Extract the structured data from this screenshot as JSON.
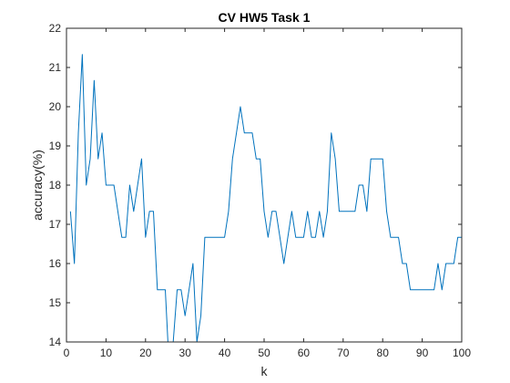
{
  "chart_data": {
    "type": "line",
    "title": "CV HW5 Task 1",
    "xlabel": "k",
    "ylabel": "accuracy(%)",
    "xlim": [
      0,
      100
    ],
    "ylim": [
      14,
      22
    ],
    "xticks": [
      0,
      10,
      20,
      30,
      40,
      50,
      60,
      70,
      80,
      90,
      100
    ],
    "yticks": [
      14,
      15,
      16,
      17,
      18,
      19,
      20,
      21,
      22
    ],
    "grid": false,
    "box": true,
    "series": [
      {
        "color": "#0072BD",
        "x": [
          1,
          2,
          3,
          4,
          5,
          6,
          7,
          8,
          9,
          10,
          11,
          12,
          13,
          14,
          15,
          16,
          17,
          18,
          19,
          20,
          21,
          22,
          23,
          24,
          25,
          26,
          27,
          28,
          29,
          30,
          31,
          32,
          33,
          34,
          35,
          36,
          37,
          38,
          39,
          40,
          41,
          42,
          43,
          44,
          45,
          46,
          47,
          48,
          49,
          50,
          51,
          52,
          53,
          54,
          55,
          56,
          57,
          58,
          59,
          60,
          61,
          62,
          63,
          64,
          65,
          66,
          67,
          68,
          69,
          70,
          71,
          72,
          73,
          74,
          75,
          76,
          77,
          78,
          79,
          80,
          81,
          82,
          83,
          84,
          85,
          86,
          87,
          88,
          89,
          90,
          91,
          92,
          93,
          94,
          95,
          96,
          97,
          98,
          99,
          100
        ],
        "y": [
          17.33,
          16.0,
          19.33,
          21.33,
          18.0,
          18.67,
          20.67,
          18.67,
          19.33,
          18.0,
          18.0,
          18.0,
          17.33,
          16.67,
          16.67,
          18.0,
          17.33,
          18.0,
          18.67,
          16.67,
          17.33,
          17.33,
          15.33,
          15.33,
          15.33,
          13.33,
          14.0,
          15.33,
          15.33,
          14.67,
          15.33,
          16.0,
          14.0,
          14.67,
          16.67,
          16.67,
          16.67,
          16.67,
          16.67,
          16.67,
          17.33,
          18.67,
          19.33,
          20.0,
          19.33,
          19.33,
          19.33,
          18.67,
          18.67,
          17.33,
          16.67,
          17.33,
          17.33,
          16.67,
          16.0,
          16.67,
          17.33,
          16.67,
          16.67,
          16.67,
          17.33,
          16.67,
          16.67,
          17.33,
          16.67,
          17.33,
          19.33,
          18.67,
          17.33,
          17.33,
          17.33,
          17.33,
          17.33,
          18.0,
          18.0,
          17.33,
          18.67,
          18.67,
          18.67,
          18.67,
          17.33,
          16.67,
          16.67,
          16.67,
          16.0,
          16.0,
          15.33,
          15.33,
          15.33,
          15.33,
          15.33,
          15.33,
          15.33,
          16.0,
          15.33,
          16.0,
          16.0,
          16.0,
          16.67,
          16.67
        ]
      }
    ]
  }
}
